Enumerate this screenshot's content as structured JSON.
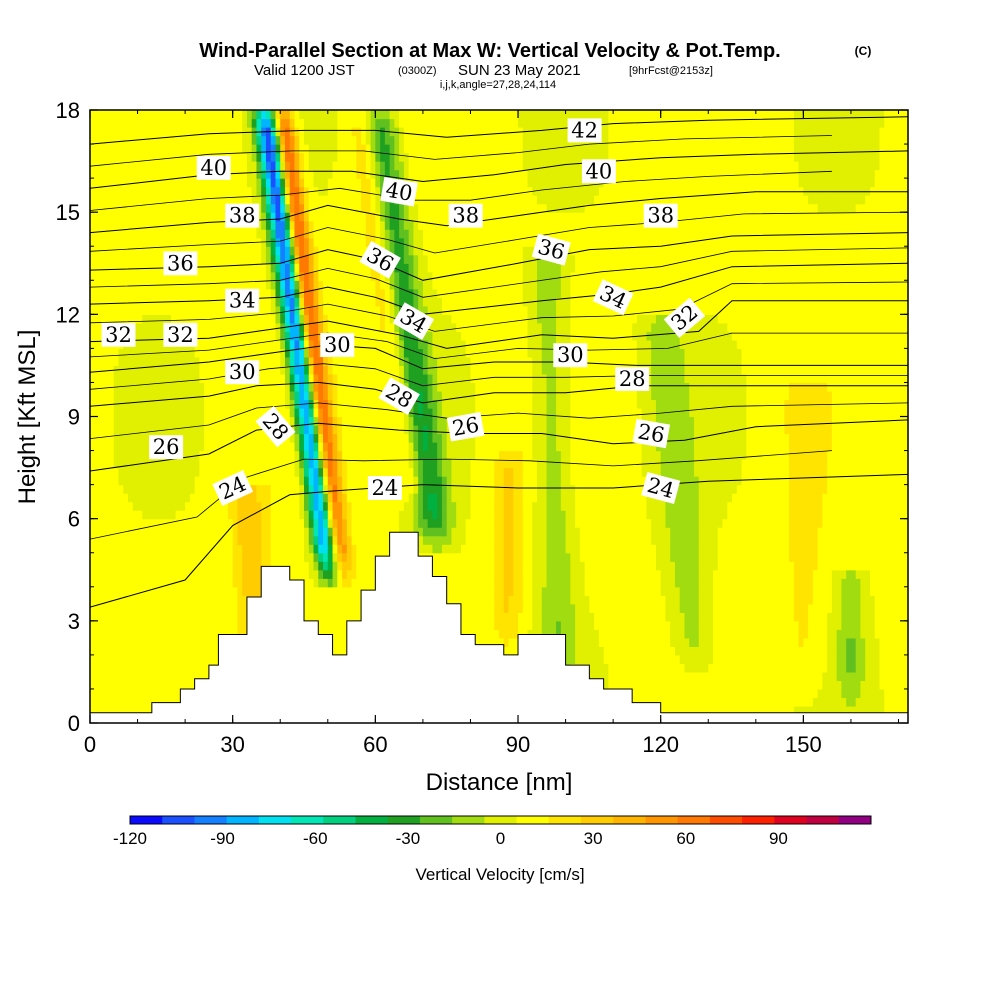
{
  "chart_data": {
    "type": "heatmap",
    "title": "Wind-Parallel Section at Max W: Vertical Velocity & Pot.Temp.",
    "title_suffix": "(C)",
    "subtitle": {
      "valid": "Valid 1200 JST",
      "zulu": "(0300Z)",
      "date": "SUN 23 May 2021",
      "fcst": "[9hrFcst@2153z]"
    },
    "subtitle2": "i,j,k,angle=27,28,24,114",
    "xlabel": "Distance [nm]",
    "ylabel": "Height [Kft MSL]",
    "xlim": [
      0,
      172
    ],
    "ylim": [
      0,
      18
    ],
    "x_ticks": [
      "0",
      "30",
      "60",
      "90",
      "120",
      "150"
    ],
    "y_ticks": [
      "0",
      "3",
      "6",
      "9",
      "12",
      "15",
      "18"
    ],
    "colorbar": {
      "label": "Vertical Velocity [cm/s]",
      "ticks": [
        "-120",
        "-90",
        "-60",
        "-30",
        "0",
        "30",
        "60",
        "90"
      ],
      "levels_min": -120,
      "levels_max": 110,
      "step": 10,
      "colors": [
        "#0a0aff",
        "#1a50ff",
        "#1480ff",
        "#00b4ff",
        "#00e0f0",
        "#00e6b4",
        "#00d080",
        "#00b040",
        "#20a020",
        "#60c020",
        "#a0dc10",
        "#e0f000",
        "#ffff00",
        "#ffe400",
        "#ffcc00",
        "#ffb400",
        "#ff9600",
        "#ff7800",
        "#ff4c00",
        "#ff2000",
        "#e00020",
        "#c00040",
        "#900080"
      ]
    },
    "terrain": [
      [
        0,
        0.3
      ],
      [
        13,
        0.3
      ],
      [
        13,
        0.6
      ],
      [
        16,
        0.6
      ],
      [
        16,
        0.6
      ],
      [
        19,
        0.6
      ],
      [
        19,
        1.0
      ],
      [
        22,
        1.0
      ],
      [
        22,
        1.3
      ],
      [
        25,
        1.3
      ],
      [
        25,
        1.7
      ],
      [
        27,
        1.7
      ],
      [
        27,
        2.6
      ],
      [
        30,
        2.6
      ],
      [
        30,
        2.6
      ],
      [
        33,
        2.6
      ],
      [
        33,
        3.7
      ],
      [
        36,
        3.7
      ],
      [
        36,
        4.6
      ],
      [
        42,
        4.6
      ],
      [
        42,
        4.2
      ],
      [
        45,
        4.2
      ],
      [
        45,
        3.0
      ],
      [
        48,
        3.0
      ],
      [
        48,
        2.6
      ],
      [
        51,
        2.6
      ],
      [
        51,
        2.0
      ],
      [
        54,
        2.0
      ],
      [
        54,
        3.0
      ],
      [
        57,
        3.0
      ],
      [
        57,
        3.9
      ],
      [
        60,
        3.9
      ],
      [
        60,
        4.9
      ],
      [
        63,
        4.9
      ],
      [
        63,
        5.6
      ],
      [
        69,
        5.6
      ],
      [
        69,
        4.9
      ],
      [
        72,
        4.9
      ],
      [
        72,
        4.3
      ],
      [
        75,
        4.3
      ],
      [
        75,
        3.5
      ],
      [
        78,
        3.5
      ],
      [
        78,
        2.6
      ],
      [
        81,
        2.6
      ],
      [
        81,
        2.3
      ],
      [
        87,
        2.3
      ],
      [
        87,
        2.0
      ],
      [
        90,
        2.0
      ],
      [
        90,
        2.6
      ],
      [
        100,
        2.6
      ],
      [
        100,
        1.7
      ],
      [
        105,
        1.7
      ],
      [
        105,
        1.3
      ],
      [
        108,
        1.3
      ],
      [
        108,
        1.0
      ],
      [
        114,
        1.0
      ],
      [
        114,
        0.6
      ],
      [
        120,
        0.6
      ],
      [
        120,
        0.3
      ],
      [
        172,
        0.3
      ]
    ],
    "w_features": [
      {
        "x0": 37,
        "x1": 51,
        "z0": 4.0,
        "z1": 18.0,
        "peak": -120,
        "width": 2.6
      },
      {
        "x0": 40,
        "x1": 53,
        "z0": 4.0,
        "z1": 18.0,
        "peak": 85,
        "width": 2.4
      },
      {
        "x0": 33,
        "x1": 36,
        "z0": 0.5,
        "z1": 7.0,
        "peak": 25,
        "width": 3.5
      },
      {
        "x0": 60,
        "x1": 73,
        "z0": 5.0,
        "z1": 18.0,
        "peak": -45,
        "width": 4.0
      },
      {
        "x0": 57,
        "x1": 69,
        "z0": 6.0,
        "z1": 18.0,
        "peak": 28,
        "width": 3.0
      },
      {
        "x0": 96,
        "x1": 99,
        "z0": 1.0,
        "z1": 14.0,
        "peak": -20,
        "width": 4.0
      },
      {
        "x0": 120,
        "x1": 128,
        "z0": 1.0,
        "z1": 12.0,
        "peak": -18,
        "width": 4.5
      },
      {
        "x0": 88,
        "x1": 88,
        "z0": 2.0,
        "z1": 8.0,
        "peak": 18,
        "width": 3.0
      },
      {
        "x0": 160,
        "x1": 160,
        "z0": 0.3,
        "z1": 4.5,
        "peak": -20,
        "width": 3.0
      },
      {
        "x0": 150,
        "x1": 150,
        "z0": 0.5,
        "z1": 10.0,
        "peak": 10,
        "width": 4.0
      }
    ],
    "contours": [
      {
        "value": "24",
        "points": [
          [
            0,
            3.4
          ],
          [
            20,
            4.2
          ],
          [
            30,
            5.8
          ],
          [
            42,
            6.7
          ],
          [
            50,
            6.8
          ],
          [
            70,
            7.0
          ],
          [
            90,
            6.9
          ],
          [
            110,
            6.9
          ],
          [
            130,
            7.1
          ],
          [
            172,
            7.3
          ]
        ]
      },
      {
        "value": "26",
        "points": [
          [
            0,
            7.4
          ],
          [
            25,
            7.9
          ],
          [
            35,
            8.6
          ],
          [
            48,
            8.8
          ],
          [
            65,
            8.6
          ],
          [
            80,
            8.5
          ],
          [
            95,
            8.5
          ],
          [
            110,
            8.2
          ],
          [
            125,
            8.3
          ],
          [
            140,
            8.7
          ],
          [
            172,
            8.9
          ]
        ]
      },
      {
        "value": "28",
        "points": [
          [
            0,
            9.3
          ],
          [
            25,
            9.6
          ],
          [
            35,
            9.9
          ],
          [
            48,
            10.0
          ],
          [
            60,
            9.8
          ],
          [
            70,
            9.4
          ],
          [
            85,
            9.7
          ],
          [
            100,
            9.7
          ],
          [
            115,
            9.9
          ],
          [
            130,
            9.9
          ],
          [
            172,
            9.9
          ]
        ]
      },
      {
        "value": "30",
        "points": [
          [
            0,
            10.3
          ],
          [
            25,
            10.6
          ],
          [
            40,
            10.9
          ],
          [
            50,
            11.1
          ],
          [
            60,
            11.0
          ],
          [
            70,
            10.4
          ],
          [
            85,
            10.6
          ],
          [
            100,
            10.6
          ],
          [
            115,
            10.5
          ],
          [
            135,
            10.5
          ],
          [
            172,
            10.5
          ]
        ]
      },
      {
        "value": "32",
        "points": [
          [
            0,
            11.2
          ],
          [
            25,
            11.3
          ],
          [
            40,
            11.6
          ],
          [
            50,
            11.8
          ],
          [
            65,
            11.4
          ],
          [
            75,
            11.0
          ],
          [
            95,
            11.4
          ],
          [
            110,
            11.3
          ],
          [
            128,
            11.5
          ],
          [
            135,
            12.4
          ],
          [
            172,
            12.4
          ]
        ]
      },
      {
        "value": "34",
        "points": [
          [
            0,
            12.3
          ],
          [
            25,
            12.4
          ],
          [
            40,
            12.5
          ],
          [
            50,
            12.8
          ],
          [
            60,
            12.5
          ],
          [
            70,
            12.0
          ],
          [
            95,
            12.4
          ],
          [
            110,
            12.6
          ],
          [
            120,
            12.8
          ],
          [
            135,
            13.4
          ],
          [
            172,
            13.5
          ]
        ]
      },
      {
        "value": "36",
        "points": [
          [
            0,
            13.3
          ],
          [
            25,
            13.4
          ],
          [
            40,
            13.5
          ],
          [
            50,
            13.9
          ],
          [
            60,
            13.6
          ],
          [
            70,
            13.0
          ],
          [
            90,
            13.5
          ],
          [
            105,
            13.9
          ],
          [
            120,
            14.0
          ],
          [
            135,
            14.3
          ],
          [
            172,
            14.4
          ]
        ]
      },
      {
        "value": "38",
        "points": [
          [
            0,
            14.4
          ],
          [
            25,
            14.7
          ],
          [
            40,
            14.8
          ],
          [
            50,
            15.2
          ],
          [
            65,
            14.8
          ],
          [
            75,
            14.6
          ],
          [
            90,
            14.9
          ],
          [
            105,
            15.2
          ],
          [
            120,
            15.4
          ],
          [
            140,
            15.6
          ],
          [
            172,
            15.6
          ]
        ]
      },
      {
        "value": "40",
        "points": [
          [
            0,
            15.7
          ],
          [
            25,
            16.1
          ],
          [
            40,
            16.2
          ],
          [
            55,
            16.2
          ],
          [
            70,
            15.9
          ],
          [
            85,
            16.1
          ],
          [
            100,
            16.4
          ],
          [
            120,
            16.6
          ],
          [
            140,
            16.7
          ],
          [
            172,
            16.8
          ]
        ]
      },
      {
        "value": "42",
        "points": [
          [
            0,
            17.0
          ],
          [
            25,
            17.3
          ],
          [
            45,
            17.4
          ],
          [
            60,
            17.4
          ],
          [
            75,
            17.2
          ],
          [
            95,
            17.4
          ],
          [
            110,
            17.6
          ],
          [
            130,
            17.7
          ],
          [
            172,
            17.8
          ]
        ]
      }
    ],
    "contour_labels": [
      {
        "text": "24",
        "x": 30,
        "y": 6.9,
        "angle": -25
      },
      {
        "text": "24",
        "x": 62,
        "y": 6.9,
        "angle": 0
      },
      {
        "text": "24",
        "x": 120,
        "y": 6.9,
        "angle": 15
      },
      {
        "text": "26",
        "x": 16,
        "y": 8.1,
        "angle": 0
      },
      {
        "text": "26",
        "x": 79,
        "y": 8.7,
        "angle": -10
      },
      {
        "text": "26",
        "x": 118,
        "y": 8.5,
        "angle": 10
      },
      {
        "text": "28",
        "x": 39,
        "y": 8.7,
        "angle": 50
      },
      {
        "text": "28",
        "x": 65,
        "y": 9.6,
        "angle": 30
      },
      {
        "text": "28",
        "x": 114,
        "y": 10.1,
        "angle": 0
      },
      {
        "text": "30",
        "x": 32,
        "y": 10.3,
        "angle": 0
      },
      {
        "text": "30",
        "x": 52,
        "y": 11.1,
        "angle": 0
      },
      {
        "text": "30",
        "x": 101,
        "y": 10.8,
        "angle": 0
      },
      {
        "text": "32",
        "x": 6,
        "y": 11.4,
        "angle": 0
      },
      {
        "text": "32",
        "x": 19,
        "y": 11.4,
        "angle": 0
      },
      {
        "text": "32",
        "x": 125,
        "y": 11.9,
        "angle": -40
      },
      {
        "text": "34",
        "x": 32,
        "y": 12.4,
        "angle": 0
      },
      {
        "text": "34",
        "x": 68,
        "y": 11.8,
        "angle": 30
      },
      {
        "text": "34",
        "x": 110,
        "y": 12.5,
        "angle": 25
      },
      {
        "text": "36",
        "x": 19,
        "y": 13.5,
        "angle": 0
      },
      {
        "text": "36",
        "x": 61,
        "y": 13.6,
        "angle": 30
      },
      {
        "text": "36",
        "x": 97,
        "y": 13.9,
        "angle": 15
      },
      {
        "text": "38",
        "x": 32,
        "y": 14.9,
        "angle": 0
      },
      {
        "text": "38",
        "x": 79,
        "y": 14.9,
        "angle": 0
      },
      {
        "text": "38",
        "x": 120,
        "y": 14.9,
        "angle": 0
      },
      {
        "text": "40",
        "x": 26,
        "y": 16.3,
        "angle": 0
      },
      {
        "text": "40",
        "x": 65,
        "y": 15.6,
        "angle": 10
      },
      {
        "text": "40",
        "x": 107,
        "y": 16.2,
        "angle": 0
      },
      {
        "text": "42",
        "x": 104,
        "y": 17.4,
        "angle": 0
      }
    ]
  }
}
